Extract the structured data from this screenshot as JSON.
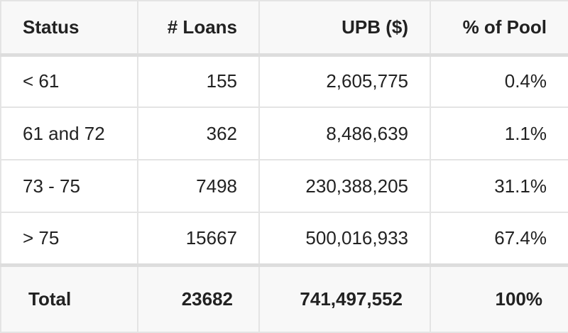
{
  "table": {
    "headers": {
      "status": "Status",
      "loans": "# Loans",
      "upb": "UPB ($)",
      "pct": "% of Pool"
    },
    "rows": [
      {
        "status": "< 61",
        "loans": "155",
        "upb": "2,605,775",
        "pct": "0.4%"
      },
      {
        "status": "61 and 72",
        "loans": "362",
        "upb": "8,486,639",
        "pct": "1.1%"
      },
      {
        "status": "73 - 75",
        "loans": "7498",
        "upb": "230,388,205",
        "pct": "31.1%"
      },
      {
        "status": "> 75",
        "loans": "15667",
        "upb": "500,016,933",
        "pct": "67.4%"
      }
    ],
    "total": {
      "status": "Total",
      "loans": "23682",
      "upb": "741,497,552",
      "pct": "100%"
    }
  }
}
